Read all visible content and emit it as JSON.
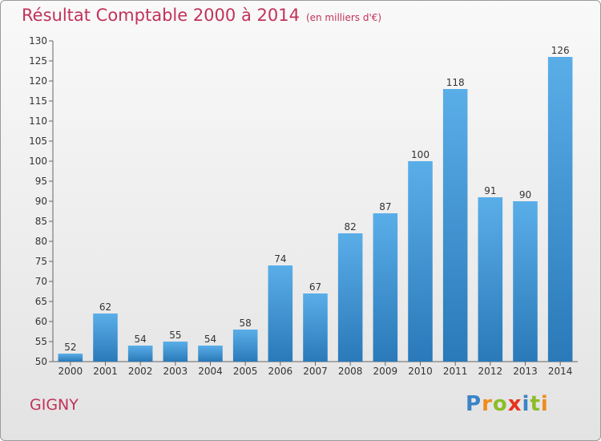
{
  "header": {
    "title": "Résultat Comptable 2000 à 2014",
    "subtitle": "(en milliers d'€)"
  },
  "footer": {
    "commune": "GIGNY",
    "logo_letters": [
      "P",
      "r",
      "o",
      "x",
      "i",
      "t",
      "i"
    ],
    "logo_colors": [
      "#3a84c6",
      "#f08c1c",
      "#8cbd2a",
      "#e8321e",
      "#3a84c6",
      "#8cbd2a",
      "#f08c1c"
    ]
  },
  "colors": {
    "accent": "#c2325a",
    "bar_top": "#5aaee8",
    "bar_bottom": "#2a79b9"
  },
  "chart_data": {
    "type": "bar",
    "title": "Résultat Comptable 2000 à 2014",
    "xlabel": "",
    "ylabel": "",
    "categories": [
      "2000",
      "2001",
      "2002",
      "2003",
      "2004",
      "2005",
      "2006",
      "2007",
      "2008",
      "2009",
      "2010",
      "2011",
      "2012",
      "2013",
      "2014"
    ],
    "values": [
      52,
      62,
      54,
      55,
      54,
      58,
      74,
      67,
      82,
      87,
      100,
      118,
      91,
      90,
      126
    ],
    "ylim": [
      50,
      130
    ],
    "yticks": [
      50,
      55,
      60,
      65,
      70,
      75,
      80,
      85,
      90,
      95,
      100,
      105,
      110,
      115,
      120,
      125,
      130
    ],
    "grid": false
  }
}
